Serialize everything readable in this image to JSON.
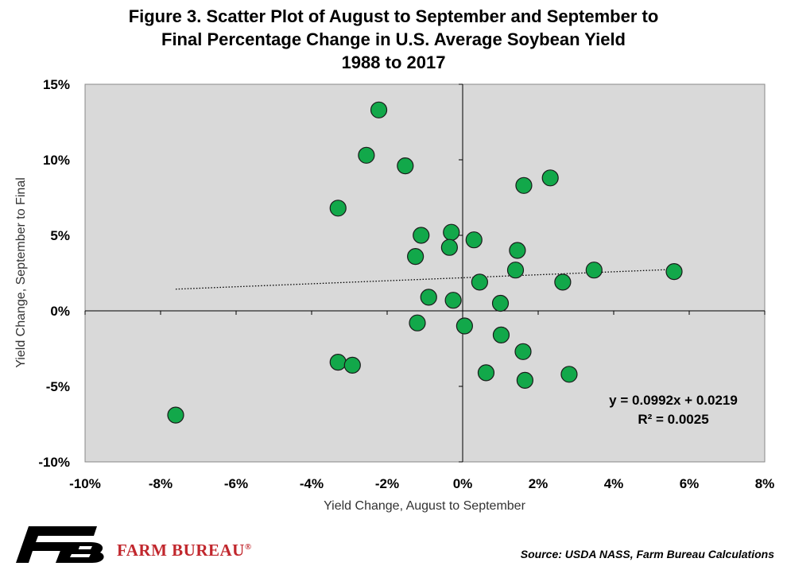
{
  "title": {
    "line1": "Figure 3. Scatter Plot of August to September and September to",
    "line2": "Final Percentage Change in U.S. Average Soybean Yield",
    "line3": "1988 to 2017"
  },
  "chart_data": {
    "type": "scatter",
    "title": "Figure 3. Scatter Plot of August to September and September to Final Percentage Change in U.S. Average Soybean Yield 1988 to 2017",
    "xlabel": "Yield Change, August to September",
    "ylabel": "Yield Change, September to Final",
    "xlim": [
      -0.1,
      0.08
    ],
    "ylim": [
      -0.1,
      0.15
    ],
    "xticks": [
      -0.1,
      -0.08,
      -0.06,
      -0.04,
      -0.02,
      0,
      0.02,
      0.04,
      0.06,
      0.08
    ],
    "xtick_labels": [
      "-10%",
      "-8%",
      "-6%",
      "-4%",
      "-2%",
      "0%",
      "2%",
      "4%",
      "6%",
      "8%"
    ],
    "yticks": [
      -0.1,
      -0.05,
      0,
      0.05,
      0.1,
      0.15
    ],
    "ytick_labels": [
      "-10%",
      "-5%",
      "0%",
      "5%",
      "10%",
      "15%"
    ],
    "grid": false,
    "point_color": "#12a84a",
    "plot_background": "#d9d9d9",
    "points": [
      {
        "x": -0.0222,
        "y": 0.133
      },
      {
        "x": -0.0255,
        "y": 0.103
      },
      {
        "x": -0.0152,
        "y": 0.096
      },
      {
        "x": 0.0232,
        "y": 0.088
      },
      {
        "x": 0.0162,
        "y": 0.083
      },
      {
        "x": -0.033,
        "y": 0.068
      },
      {
        "x": -0.011,
        "y": 0.05
      },
      {
        "x": -0.003,
        "y": 0.052
      },
      {
        "x": 0.003,
        "y": 0.047
      },
      {
        "x": -0.0035,
        "y": 0.042
      },
      {
        "x": 0.0145,
        "y": 0.04
      },
      {
        "x": -0.0125,
        "y": 0.036
      },
      {
        "x": 0.014,
        "y": 0.027
      },
      {
        "x": 0.0348,
        "y": 0.027
      },
      {
        "x": 0.056,
        "y": 0.026
      },
      {
        "x": 0.0045,
        "y": 0.019
      },
      {
        "x": 0.0265,
        "y": 0.019
      },
      {
        "x": -0.009,
        "y": 0.009
      },
      {
        "x": -0.0025,
        "y": 0.007
      },
      {
        "x": 0.01,
        "y": 0.005
      },
      {
        "x": -0.012,
        "y": -0.008
      },
      {
        "x": 0.0005,
        "y": -0.01
      },
      {
        "x": 0.0102,
        "y": -0.016
      },
      {
        "x": 0.016,
        "y": -0.027
      },
      {
        "x": -0.033,
        "y": -0.034
      },
      {
        "x": -0.0292,
        "y": -0.036
      },
      {
        "x": 0.0062,
        "y": -0.041
      },
      {
        "x": 0.0282,
        "y": -0.042
      },
      {
        "x": 0.0165,
        "y": -0.046
      },
      {
        "x": -0.076,
        "y": -0.069
      }
    ],
    "trendline": {
      "slope": 0.0992,
      "intercept": 0.0219,
      "x_range": [
        -0.076,
        0.056
      ],
      "equation": "y = 0.0992x + 0.0219",
      "r_squared": "R² = 0.0025"
    }
  },
  "source": "Source: USDA NASS, Farm Bureau Calculations",
  "brand": {
    "name": "FARM BUREAU",
    "registered_mark": "®",
    "logo_color": "#000000",
    "name_color": "#c1272d"
  }
}
